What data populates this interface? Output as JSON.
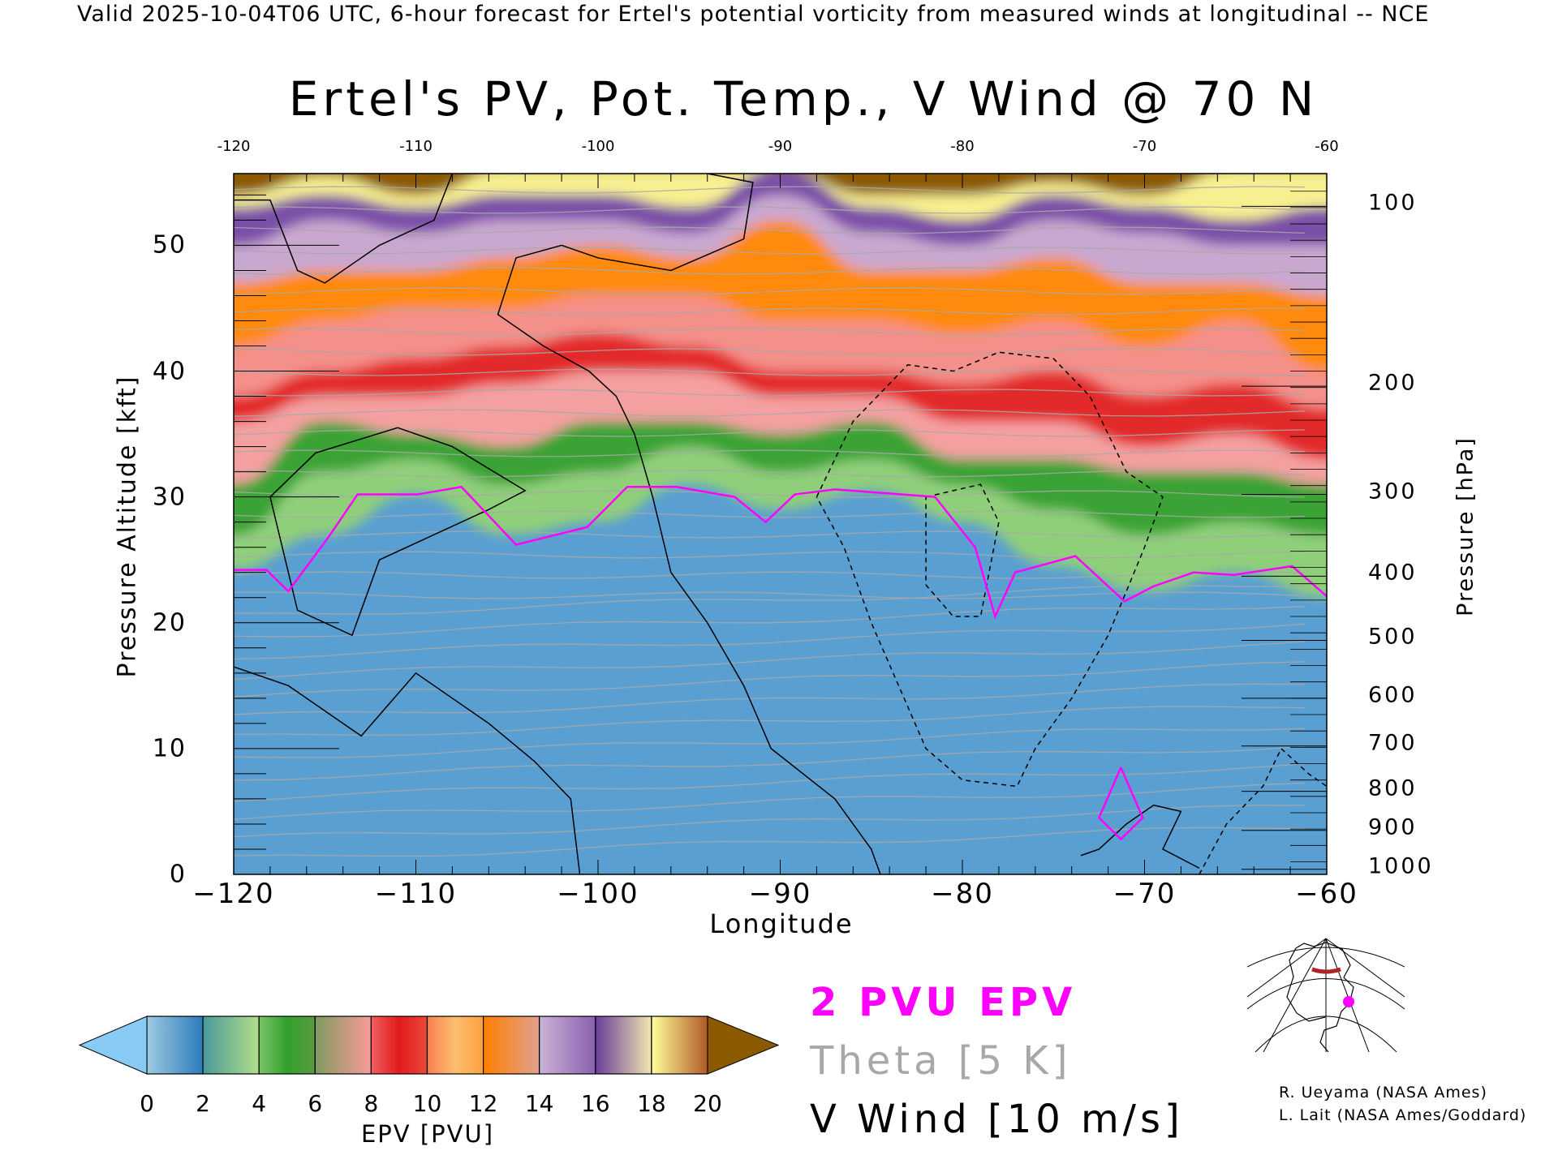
{
  "header": "Valid 2025-10-04T06 UTC, 6-hour forecast for Ertel's potential vorticity from measured winds at longitudinal -- NCE",
  "chart_data": {
    "type": "heatmap",
    "title": "Ertel's PV, Pot. Temp., V Wind @ 70 N",
    "xlabel": "Longitude",
    "ylabel": "Pressure Altitude [kft]",
    "y2label": "Pressure [hPa]",
    "xlim": [
      -120,
      -60
    ],
    "ylim": [
      0,
      55.7
    ],
    "x_ticks": [
      "-120",
      "-110",
      "-100",
      "-90",
      "-80",
      "-70",
      "-60"
    ],
    "x_tick_values": [
      -120,
      -110,
      -100,
      -90,
      -80,
      -70,
      -60
    ],
    "y_ticks": [
      "0",
      "10",
      "20",
      "30",
      "40",
      "50"
    ],
    "y_tick_values": [
      0,
      10,
      20,
      30,
      40,
      50
    ],
    "y2_ticks": [
      "100",
      "200",
      "300",
      "400",
      "500",
      "600",
      "700",
      "800",
      "900",
      "1000"
    ],
    "y2_tick_kft": [
      53.1,
      38.8,
      30.2,
      23.7,
      18.6,
      14.0,
      10.2,
      6.6,
      3.5,
      0.4
    ],
    "pv_boundary_longitudes": [
      -120,
      -115,
      -110,
      -105,
      -100,
      -95,
      -90,
      -85,
      -80,
      -75,
      -70,
      -65,
      -60
    ],
    "pv_boundaries_kft": [
      {
        "pvu": 2,
        "kft": [
          24.2,
          27,
          30.2,
          27,
          28,
          31,
          29,
          30.5,
          28,
          24.5,
          22.5,
          24,
          22
        ]
      },
      {
        "pvu": 4,
        "kft": [
          27,
          32,
          33,
          31,
          32,
          34,
          32,
          33,
          31,
          29,
          27,
          28,
          27
        ]
      },
      {
        "pvu": 6,
        "kft": [
          31,
          36,
          35,
          34,
          36,
          36,
          35,
          36,
          33,
          33,
          32,
          32,
          31
        ]
      },
      {
        "pvu": 8,
        "kft": [
          36,
          38,
          38,
          39,
          40,
          40,
          38,
          38,
          36,
          36,
          34,
          35,
          33
        ]
      },
      {
        "pvu": 10,
        "kft": [
          38,
          40,
          41,
          42,
          43,
          42,
          40,
          40,
          39,
          40,
          38,
          39,
          37
        ]
      },
      {
        "pvu": 12,
        "kft": [
          42,
          44,
          45,
          45,
          46,
          46,
          44,
          44,
          43,
          44,
          42,
          44,
          40
        ]
      },
      {
        "pvu": 14,
        "kft": [
          47,
          48,
          48,
          49,
          50,
          49,
          52,
          48,
          48,
          49,
          47,
          47,
          46
        ]
      },
      {
        "pvu": 16,
        "kft": [
          50,
          52,
          51,
          52,
          52,
          51,
          54,
          51,
          50,
          52,
          51,
          50,
          50
        ]
      },
      {
        "pvu": 18,
        "kft": [
          53,
          54,
          53,
          54,
          54,
          53,
          56,
          53,
          52,
          54,
          53,
          52,
          53
        ]
      },
      {
        "pvu": 20,
        "kft": [
          54,
          55.5,
          54,
          56,
          56,
          56,
          56,
          54,
          54,
          55,
          54,
          56,
          56
        ]
      }
    ],
    "two_pvu_contour": [
      [
        -120,
        24.2
      ],
      [
        -118.2,
        24.2
      ],
      [
        -117,
        22.5
      ],
      [
        -114.8,
        26.8
      ],
      [
        -113.2,
        30.2
      ],
      [
        -109.9,
        30.2
      ],
      [
        -107.5,
        30.8
      ],
      [
        -104.5,
        26.2
      ],
      [
        -100.6,
        27.6
      ],
      [
        -98.4,
        30.8
      ],
      [
        -95.7,
        30.8
      ],
      [
        -92.5,
        30
      ],
      [
        -90.8,
        28
      ],
      [
        -89.2,
        30.2
      ],
      [
        -87,
        30.6
      ],
      [
        -81.5,
        30
      ],
      [
        -79.3,
        26
      ],
      [
        -78.2,
        20.5
      ],
      [
        -77.1,
        24
      ],
      [
        -73.8,
        25.3
      ],
      [
        -71.1,
        21.7
      ],
      [
        -69.5,
        22.9
      ],
      [
        -67.3,
        24
      ],
      [
        -65.1,
        23.8
      ],
      [
        -61.9,
        24.5
      ],
      [
        -60,
        22.1
      ]
    ],
    "two_pvu_island": [
      [
        -71.3,
        8.5
      ],
      [
        -72.5,
        4.5
      ],
      [
        -71.3,
        2.8
      ],
      [
        -70.1,
        4.5
      ],
      [
        -71.3,
        8.5
      ]
    ],
    "vwind_contours": [
      {
        "value": 10,
        "style": "solid",
        "points": [
          [
            -120,
            53.6
          ],
          [
            -118,
            53.6
          ],
          [
            -116.5,
            48
          ],
          [
            -115,
            47
          ],
          [
            -112,
            50
          ],
          [
            -109,
            52
          ],
          [
            -108,
            55.7
          ]
        ]
      },
      {
        "value": 0,
        "style": "solid",
        "points": [
          [
            -94,
            55.7
          ],
          [
            -91.5,
            55
          ],
          [
            -92,
            50.5
          ],
          [
            -96,
            48
          ],
          [
            -100,
            49
          ],
          [
            -102,
            50
          ],
          [
            -104.5,
            49
          ],
          [
            -105.5,
            44.5
          ],
          [
            -103,
            42
          ],
          [
            -100.5,
            40
          ],
          [
            -99,
            38
          ],
          [
            -98,
            35
          ],
          [
            -97,
            30
          ],
          [
            -96,
            24
          ],
          [
            -94,
            20
          ],
          [
            -92,
            15
          ],
          [
            -90.5,
            10
          ],
          [
            -87,
            6
          ],
          [
            -85,
            2
          ],
          [
            -84.5,
            0
          ]
        ]
      },
      {
        "value": 10,
        "style": "solid",
        "points": [
          [
            -117,
            24
          ],
          [
            -118,
            30
          ],
          [
            -115.5,
            33.5
          ],
          [
            -111,
            35.5
          ],
          [
            -108,
            34
          ],
          [
            -104,
            30.5
          ],
          [
            -106,
            29
          ],
          [
            -112,
            25
          ],
          [
            -113.5,
            19
          ],
          [
            -116.5,
            21
          ],
          [
            -117,
            24
          ]
        ]
      },
      {
        "value": 0,
        "style": "solid",
        "points": [
          [
            -120,
            16.5
          ],
          [
            -117,
            15
          ],
          [
            -113,
            11
          ],
          [
            -110,
            16
          ],
          [
            -106,
            12
          ],
          [
            -103.5,
            9
          ],
          [
            -101.5,
            6
          ],
          [
            -101,
            0
          ]
        ]
      },
      {
        "value": -10,
        "style": "dashed",
        "points": [
          [
            -88,
            30
          ],
          [
            -86,
            36
          ],
          [
            -83,
            40.5
          ],
          [
            -80.5,
            40
          ],
          [
            -78,
            41.5
          ],
          [
            -75,
            41
          ],
          [
            -73,
            38
          ],
          [
            -71,
            32
          ],
          [
            -69,
            30
          ],
          [
            -70,
            26
          ],
          [
            -72,
            19
          ],
          [
            -74,
            14
          ],
          [
            -76,
            10
          ],
          [
            -77,
            7
          ],
          [
            -80,
            7.5
          ],
          [
            -82,
            10
          ],
          [
            -83.5,
            15
          ],
          [
            -85,
            20
          ],
          [
            -86.5,
            26
          ],
          [
            -88,
            30
          ]
        ]
      },
      {
        "value": -10,
        "style": "dashed",
        "points": [
          [
            -82,
            30
          ],
          [
            -79,
            31
          ],
          [
            -78,
            28
          ],
          [
            -79,
            20.5
          ],
          [
            -80.5,
            20.5
          ],
          [
            -82,
            23
          ],
          [
            -82,
            30
          ]
        ]
      },
      {
        "value": 0,
        "style": "solid",
        "points": [
          [
            -73.5,
            1.5
          ],
          [
            -72.5,
            2
          ],
          [
            -71,
            4
          ],
          [
            -69.5,
            5.5
          ],
          [
            -68,
            5
          ],
          [
            -69,
            2
          ],
          [
            -67,
            0.5
          ]
        ]
      },
      {
        "value": -10,
        "style": "dashed",
        "points": [
          [
            -67,
            0
          ],
          [
            -65.5,
            4
          ],
          [
            -63.5,
            7
          ],
          [
            -62.5,
            10
          ],
          [
            -61,
            8
          ],
          [
            -60,
            7
          ]
        ]
      }
    ]
  },
  "colorbar": {
    "label": "EPV [PVU]",
    "ticks": [
      "0",
      "2",
      "4",
      "6",
      "8",
      "10",
      "12",
      "14",
      "16",
      "18",
      "20"
    ],
    "segments": [
      [
        "#9ecae1",
        "#2b7bba"
      ],
      [
        "#4a9a9a",
        "#b2df8a"
      ],
      [
        "#7cc46a",
        "#33a02c",
        "#5a9a40"
      ],
      [
        "#7f9a60",
        "#fb9a99"
      ],
      [
        "#f06060",
        "#e31a1c",
        "#e84a3a"
      ],
      [
        "#f88050",
        "#fdbf6f",
        "#fda040"
      ],
      [
        "#ff7f00",
        "#e0a090"
      ],
      [
        "#cab2d6",
        "#8a60b0"
      ],
      [
        "#6a3d9a",
        "#f0e8b0"
      ],
      [
        "#ffff99",
        "#b15928"
      ]
    ],
    "under_color": "#88ccf5",
    "over_color": "#8b5a00"
  },
  "field_colors": {
    "below": "#5a9fd2",
    "2": "#8fcf7a",
    "4": "#3aa335",
    "6": "#f4a0a0",
    "8": "#e32a2a",
    "10": "#f4908a",
    "12": "#ff8a10",
    "14": "#c9a8d0",
    "16": "#7a50a8",
    "18": "#f8f090",
    "20": "#8b5a00"
  },
  "legend": {
    "pv": "2 PVU EPV",
    "theta": "Theta [5 K]",
    "wind": "V Wind [10 m/s]",
    "pv_color": "#ff00ff",
    "theta_color": "#a8a8a8"
  },
  "credits": [
    "R. Ueyama (NASA Ames)",
    "L. Lait (NASA Ames/Goddard)"
  ]
}
